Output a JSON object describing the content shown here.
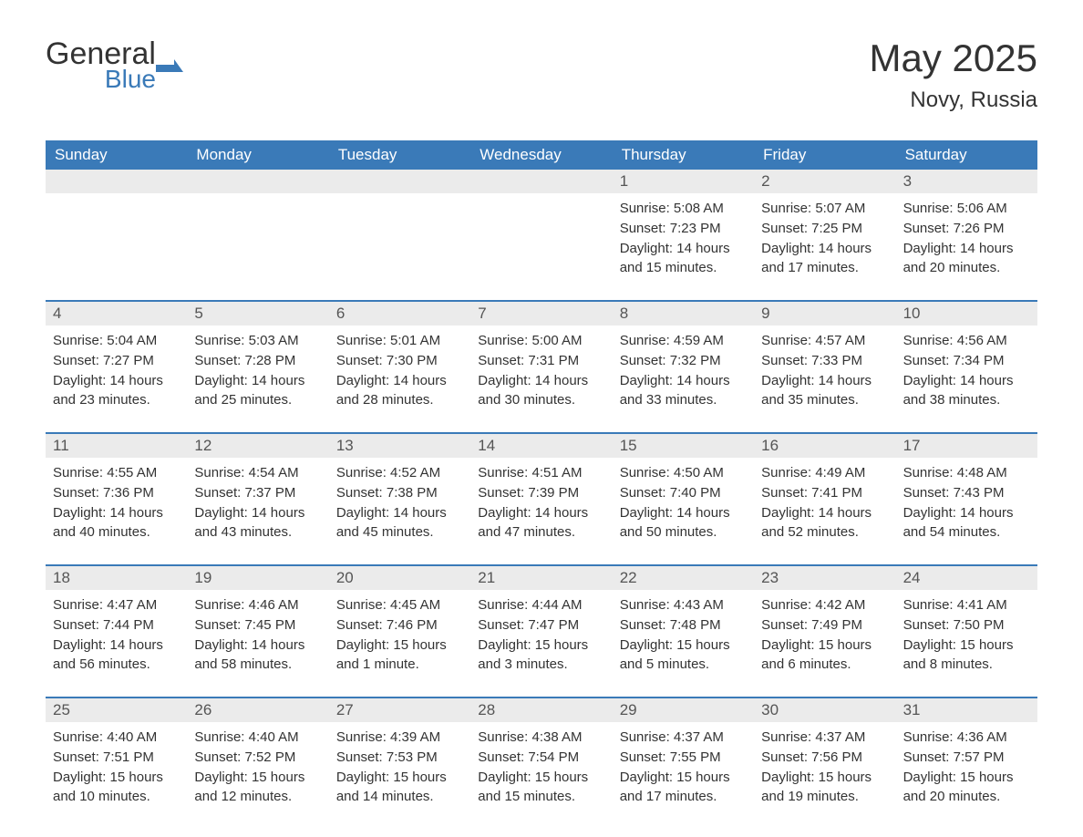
{
  "logo": {
    "text_main": "General",
    "text_sub": "Blue",
    "icon_color": "#3a7ab8"
  },
  "title": "May 2025",
  "location": "Novy, Russia",
  "colors": {
    "header_bg": "#3a7ab8",
    "header_text": "#ffffff",
    "day_number_bg": "#ebebeb",
    "text": "#333333",
    "border": "#3a7ab8"
  },
  "day_names": [
    "Sunday",
    "Monday",
    "Tuesday",
    "Wednesday",
    "Thursday",
    "Friday",
    "Saturday"
  ],
  "weeks": [
    [
      {
        "empty": true
      },
      {
        "empty": true
      },
      {
        "empty": true
      },
      {
        "empty": true
      },
      {
        "day": "1",
        "sunrise": "Sunrise: 5:08 AM",
        "sunset": "Sunset: 7:23 PM",
        "daylight": "Daylight: 14 hours and 15 minutes."
      },
      {
        "day": "2",
        "sunrise": "Sunrise: 5:07 AM",
        "sunset": "Sunset: 7:25 PM",
        "daylight": "Daylight: 14 hours and 17 minutes."
      },
      {
        "day": "3",
        "sunrise": "Sunrise: 5:06 AM",
        "sunset": "Sunset: 7:26 PM",
        "daylight": "Daylight: 14 hours and 20 minutes."
      }
    ],
    [
      {
        "day": "4",
        "sunrise": "Sunrise: 5:04 AM",
        "sunset": "Sunset: 7:27 PM",
        "daylight": "Daylight: 14 hours and 23 minutes."
      },
      {
        "day": "5",
        "sunrise": "Sunrise: 5:03 AM",
        "sunset": "Sunset: 7:28 PM",
        "daylight": "Daylight: 14 hours and 25 minutes."
      },
      {
        "day": "6",
        "sunrise": "Sunrise: 5:01 AM",
        "sunset": "Sunset: 7:30 PM",
        "daylight": "Daylight: 14 hours and 28 minutes."
      },
      {
        "day": "7",
        "sunrise": "Sunrise: 5:00 AM",
        "sunset": "Sunset: 7:31 PM",
        "daylight": "Daylight: 14 hours and 30 minutes."
      },
      {
        "day": "8",
        "sunrise": "Sunrise: 4:59 AM",
        "sunset": "Sunset: 7:32 PM",
        "daylight": "Daylight: 14 hours and 33 minutes."
      },
      {
        "day": "9",
        "sunrise": "Sunrise: 4:57 AM",
        "sunset": "Sunset: 7:33 PM",
        "daylight": "Daylight: 14 hours and 35 minutes."
      },
      {
        "day": "10",
        "sunrise": "Sunrise: 4:56 AM",
        "sunset": "Sunset: 7:34 PM",
        "daylight": "Daylight: 14 hours and 38 minutes."
      }
    ],
    [
      {
        "day": "11",
        "sunrise": "Sunrise: 4:55 AM",
        "sunset": "Sunset: 7:36 PM",
        "daylight": "Daylight: 14 hours and 40 minutes."
      },
      {
        "day": "12",
        "sunrise": "Sunrise: 4:54 AM",
        "sunset": "Sunset: 7:37 PM",
        "daylight": "Daylight: 14 hours and 43 minutes."
      },
      {
        "day": "13",
        "sunrise": "Sunrise: 4:52 AM",
        "sunset": "Sunset: 7:38 PM",
        "daylight": "Daylight: 14 hours and 45 minutes."
      },
      {
        "day": "14",
        "sunrise": "Sunrise: 4:51 AM",
        "sunset": "Sunset: 7:39 PM",
        "daylight": "Daylight: 14 hours and 47 minutes."
      },
      {
        "day": "15",
        "sunrise": "Sunrise: 4:50 AM",
        "sunset": "Sunset: 7:40 PM",
        "daylight": "Daylight: 14 hours and 50 minutes."
      },
      {
        "day": "16",
        "sunrise": "Sunrise: 4:49 AM",
        "sunset": "Sunset: 7:41 PM",
        "daylight": "Daylight: 14 hours and 52 minutes."
      },
      {
        "day": "17",
        "sunrise": "Sunrise: 4:48 AM",
        "sunset": "Sunset: 7:43 PM",
        "daylight": "Daylight: 14 hours and 54 minutes."
      }
    ],
    [
      {
        "day": "18",
        "sunrise": "Sunrise: 4:47 AM",
        "sunset": "Sunset: 7:44 PM",
        "daylight": "Daylight: 14 hours and 56 minutes."
      },
      {
        "day": "19",
        "sunrise": "Sunrise: 4:46 AM",
        "sunset": "Sunset: 7:45 PM",
        "daylight": "Daylight: 14 hours and 58 minutes."
      },
      {
        "day": "20",
        "sunrise": "Sunrise: 4:45 AM",
        "sunset": "Sunset: 7:46 PM",
        "daylight": "Daylight: 15 hours and 1 minute."
      },
      {
        "day": "21",
        "sunrise": "Sunrise: 4:44 AM",
        "sunset": "Sunset: 7:47 PM",
        "daylight": "Daylight: 15 hours and 3 minutes."
      },
      {
        "day": "22",
        "sunrise": "Sunrise: 4:43 AM",
        "sunset": "Sunset: 7:48 PM",
        "daylight": "Daylight: 15 hours and 5 minutes."
      },
      {
        "day": "23",
        "sunrise": "Sunrise: 4:42 AM",
        "sunset": "Sunset: 7:49 PM",
        "daylight": "Daylight: 15 hours and 6 minutes."
      },
      {
        "day": "24",
        "sunrise": "Sunrise: 4:41 AM",
        "sunset": "Sunset: 7:50 PM",
        "daylight": "Daylight: 15 hours and 8 minutes."
      }
    ],
    [
      {
        "day": "25",
        "sunrise": "Sunrise: 4:40 AM",
        "sunset": "Sunset: 7:51 PM",
        "daylight": "Daylight: 15 hours and 10 minutes."
      },
      {
        "day": "26",
        "sunrise": "Sunrise: 4:40 AM",
        "sunset": "Sunset: 7:52 PM",
        "daylight": "Daylight: 15 hours and 12 minutes."
      },
      {
        "day": "27",
        "sunrise": "Sunrise: 4:39 AM",
        "sunset": "Sunset: 7:53 PM",
        "daylight": "Daylight: 15 hours and 14 minutes."
      },
      {
        "day": "28",
        "sunrise": "Sunrise: 4:38 AM",
        "sunset": "Sunset: 7:54 PM",
        "daylight": "Daylight: 15 hours and 15 minutes."
      },
      {
        "day": "29",
        "sunrise": "Sunrise: 4:37 AM",
        "sunset": "Sunset: 7:55 PM",
        "daylight": "Daylight: 15 hours and 17 minutes."
      },
      {
        "day": "30",
        "sunrise": "Sunrise: 4:37 AM",
        "sunset": "Sunset: 7:56 PM",
        "daylight": "Daylight: 15 hours and 19 minutes."
      },
      {
        "day": "31",
        "sunrise": "Sunrise: 4:36 AM",
        "sunset": "Sunset: 7:57 PM",
        "daylight": "Daylight: 15 hours and 20 minutes."
      }
    ]
  ]
}
